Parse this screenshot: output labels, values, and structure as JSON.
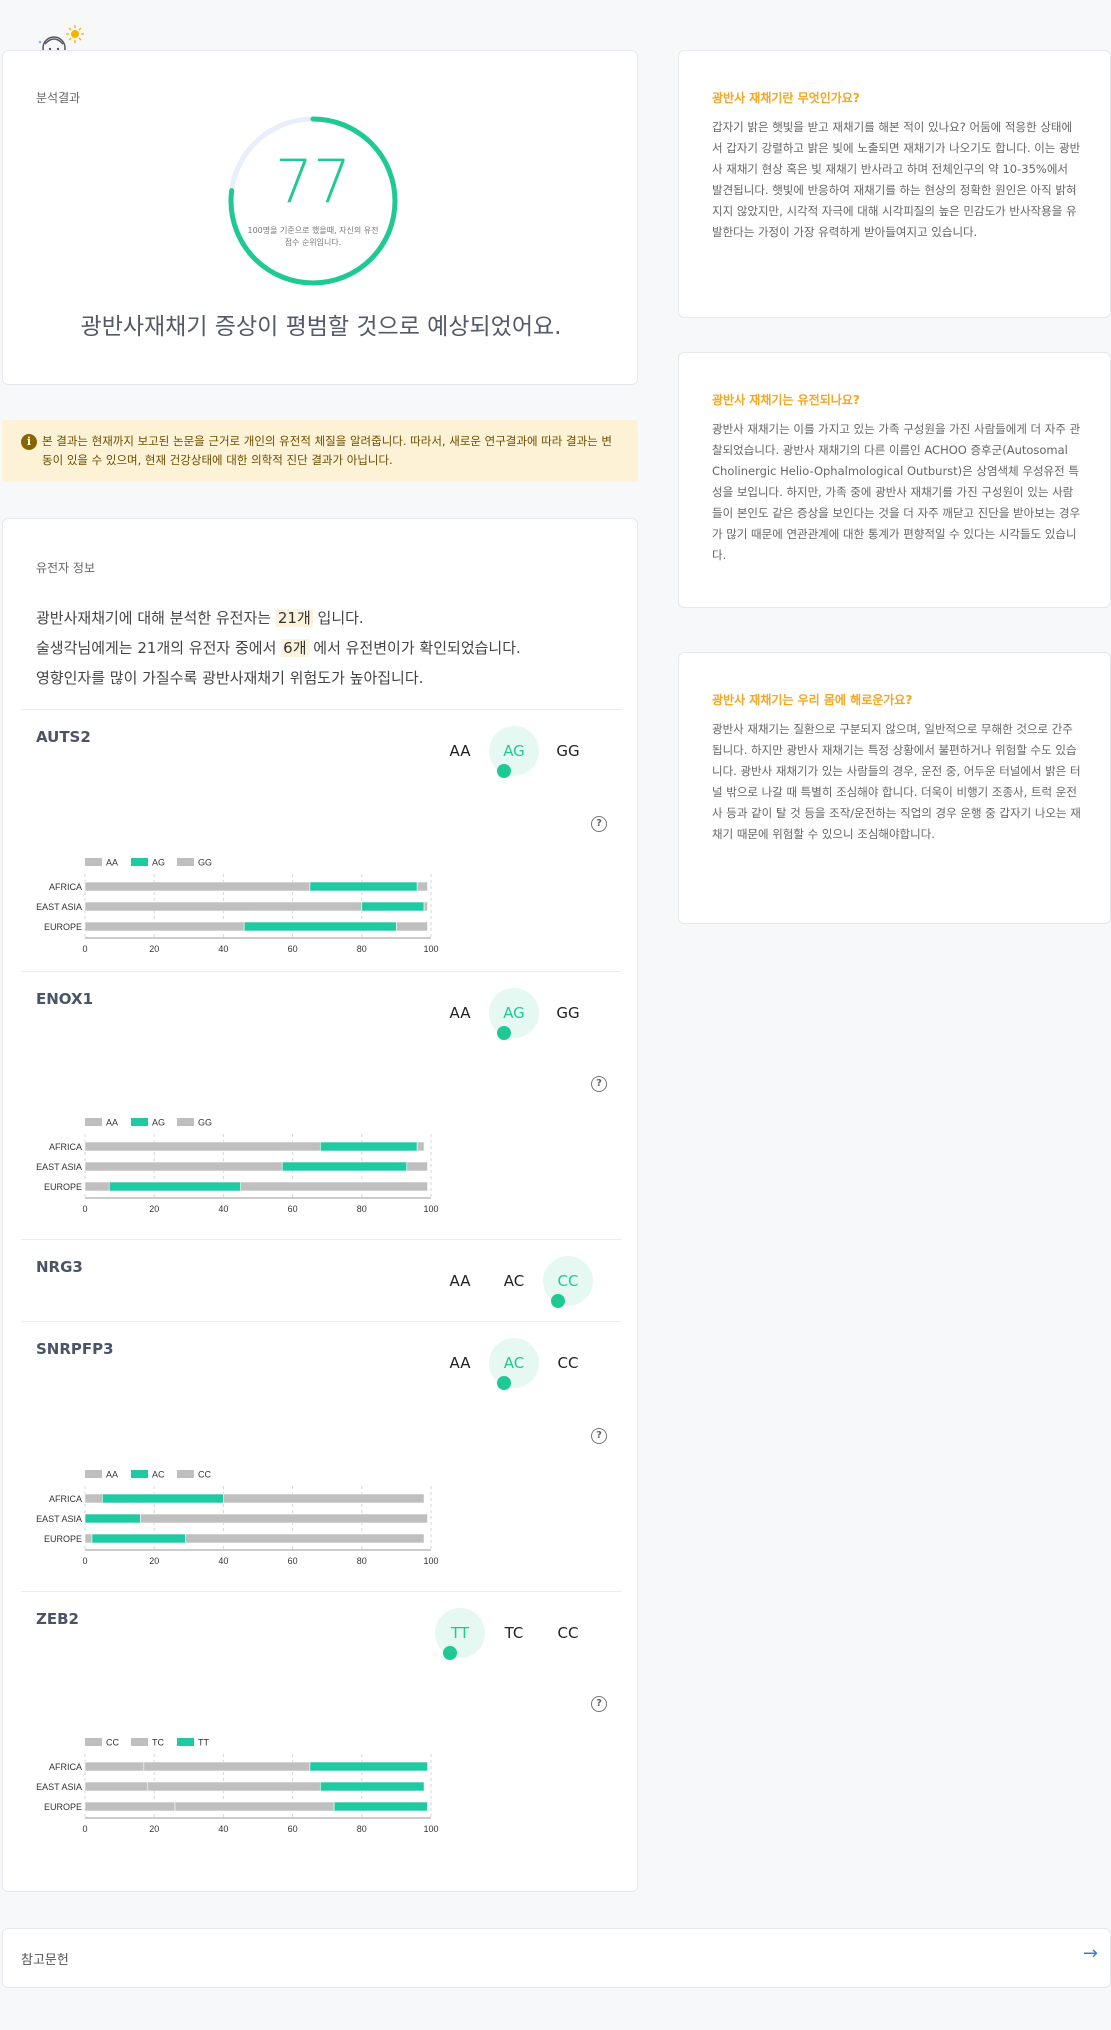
{
  "result": {
    "label": "분석결과",
    "score": "77",
    "score_fraction": 0.77,
    "score_note": "100명을 기준으로 했을때, 자신의 유전 점수 순위입니다.",
    "summary": "광반사재채기 증상이 평범할 것으로 예상되었어요."
  },
  "notice": {
    "icon": "info-icon",
    "text": "본 결과는 현재까지 보고된 논문을 근거로 개인의 유전적 체질을 알려줍니다. 따라서, 새로운 연구결과에 따라 결과는 변동이 있을 수 있으며, 현재 건강상태에 대한 의학적 진단 결과가 아닙니다."
  },
  "genes": {
    "label": "유전자 정보",
    "intro": {
      "l1_pre": "광반사재채기에 대해 분석한 유전자는 ",
      "l1_hl": "21개",
      "l1_post": " 입니다.",
      "l2_pre": "술생각님에게는 21개의 유전자 중에서 ",
      "l2_hl": "6개",
      "l2_post": " 에서 유전변이가 확인되었습니다.",
      "l3": "영향인자를 많이 가질수록 광반사재채기 위험도가 높아집니다."
    },
    "items": [
      {
        "name": "AUTS2",
        "genotypes": [
          "AA",
          "AG",
          "GG"
        ],
        "active": 1
      },
      {
        "name": "ENOX1",
        "genotypes": [
          "AA",
          "AG",
          "GG"
        ],
        "active": 1
      },
      {
        "name": "NRG3",
        "genotypes": [
          "AA",
          "AC",
          "CC"
        ],
        "active": 2
      },
      {
        "name": "SNRPFP3",
        "genotypes": [
          "AA",
          "AC",
          "CC"
        ],
        "active": 1
      },
      {
        "name": "ZEB2",
        "genotypes": [
          "TT",
          "TC",
          "CC"
        ],
        "active": 0
      }
    ]
  },
  "chart_data": [
    {
      "type": "bar",
      "gene": "AUTS2",
      "stacked": true,
      "orientation": "horizontal",
      "categories": [
        "AFRICA",
        "EAST ASIA",
        "EUROPE"
      ],
      "series": [
        {
          "name": "AA",
          "values": [
            65,
            80,
            46
          ],
          "color": "#bfbfbf"
        },
        {
          "name": "AG",
          "values": [
            31,
            18,
            44
          ],
          "color": "#1fc9a2"
        },
        {
          "name": "GG",
          "values": [
            3,
            1,
            9
          ],
          "color": "#bfbfbf"
        }
      ],
      "xlim": [
        0,
        100
      ],
      "xticks": [
        0,
        20,
        40,
        60,
        80,
        100
      ],
      "grid": true,
      "legend": "top-left"
    },
    {
      "type": "bar",
      "gene": "ENOX1",
      "stacked": true,
      "orientation": "horizontal",
      "categories": [
        "AFRICA",
        "EAST ASIA",
        "EUROPE"
      ],
      "series": [
        {
          "name": "AA",
          "values": [
            68,
            57,
            7
          ],
          "color": "#bfbfbf"
        },
        {
          "name": "AG",
          "values": [
            28,
            36,
            38
          ],
          "color": "#1fc9a2"
        },
        {
          "name": "GG",
          "values": [
            2,
            6,
            54
          ],
          "color": "#bfbfbf"
        }
      ],
      "xlim": [
        0,
        100
      ],
      "xticks": [
        0,
        20,
        40,
        60,
        80,
        100
      ],
      "grid": true,
      "legend": "top-left"
    },
    {
      "type": "bar",
      "gene": "SNRPFP3",
      "stacked": true,
      "orientation": "horizontal",
      "categories": [
        "AFRICA",
        "EAST ASIA",
        "EUROPE"
      ],
      "series": [
        {
          "name": "AA",
          "values": [
            5,
            0,
            2
          ],
          "color": "#bfbfbf"
        },
        {
          "name": "AC",
          "values": [
            35,
            16,
            27
          ],
          "color": "#1fc9a2"
        },
        {
          "name": "CC",
          "values": [
            58,
            83,
            69
          ],
          "color": "#bfbfbf"
        }
      ],
      "xlim": [
        0,
        100
      ],
      "xticks": [
        0,
        20,
        40,
        60,
        80,
        100
      ],
      "grid": true,
      "legend": "top-left"
    },
    {
      "type": "bar",
      "gene": "ZEB2",
      "stacked": true,
      "orientation": "horizontal",
      "categories": [
        "AFRICA",
        "EAST ASIA",
        "EUROPE"
      ],
      "series": [
        {
          "name": "CC",
          "values": [
            17,
            18,
            26
          ],
          "color": "#bfbfbf"
        },
        {
          "name": "TC",
          "values": [
            48,
            50,
            46
          ],
          "color": "#bfbfbf"
        },
        {
          "name": "TT",
          "values": [
            34,
            30,
            27
          ],
          "color": "#1fc9a2"
        }
      ],
      "xlim": [
        0,
        100
      ],
      "xticks": [
        0,
        20,
        40,
        60,
        80,
        100
      ],
      "grid": true,
      "legend": "top-left"
    }
  ],
  "info": [
    {
      "title": "광반사 재채기란 무엇인가요?",
      "body": "갑자기 밝은 햇빛을 받고 재채기를 해본 적이 있나요? 어둠에 적응한 상태에서 갑자기 강렬하고 밝은 빛에 노출되면 재채기가 나오기도 합니다. 이는 광반사 재채기 현상 혹은 빛 재채기 반사라고 하며 전체인구의 약 10-35%에서 발견됩니다. 햇빛에 반응하여 재채기를 하는 현상의 정확한 원인은 아직 밝혀지지 않았지만, 시각적 자극에 대해 시각피질의 높은 민감도가 반사작용을 유발한다는 가정이 가장 유력하게 받아들여지고 있습니다."
    },
    {
      "title": "광반사 재채기는 유전되나요?",
      "body": "광반사 재채기는 이를 가지고 있는 가족 구성원을 가진 사람들에게 더 자주 관찰되었습니다. 광반사 재채기의 다른 이름인 ACHOO 증후군(Autosomal Cholinergic Helio-Ophalmological Outburst)은 상염색체 우성유전 특성을 보입니다. 하지만, 가족 중에 광반사 재채기를 가진 구성원이 있는 사람들이 본인도 같은 증상을 보인다는 것을 더 자주 깨닫고 진단을 받아보는 경우가 많기 때문에 연관관계에 대한 통계가 편향적일 수 있다는 시각들도 있습니다."
    },
    {
      "title": "광반사 재채기는 우리 몸에 해로운가요?",
      "body": "광반사 재채기는 질환으로 구분되지 않으며, 일반적으로 무해한 것으로 간주됩니다. 하지만 광반사 재채기는 특정 상황에서 불편하거나 위험할 수도 있습니다. 광반사 재채기가 있는 사람들의 경우, 운전 중, 어두운 터널에서 밝은 터널 밖으로 나갈 때 특별히 조심해야 합니다. 더욱이 비행기 조종사, 트럭 운전사 등과 같이 탈 것 등을 조작/운전하는 직업의 경우 운행 중 갑자기 나오는 재채기 때문에 위험할 수 있으니 조심해야합니다."
    }
  ],
  "references": {
    "label": "참고문헌",
    "icon": "arrow-right-icon"
  },
  "colors": {
    "accent": "#1fc994",
    "bar_highlight": "#1fc9a2",
    "bar_base": "#bfbfbf",
    "info_title": "#f5a623",
    "notice_bg": "#fdf1d6"
  }
}
